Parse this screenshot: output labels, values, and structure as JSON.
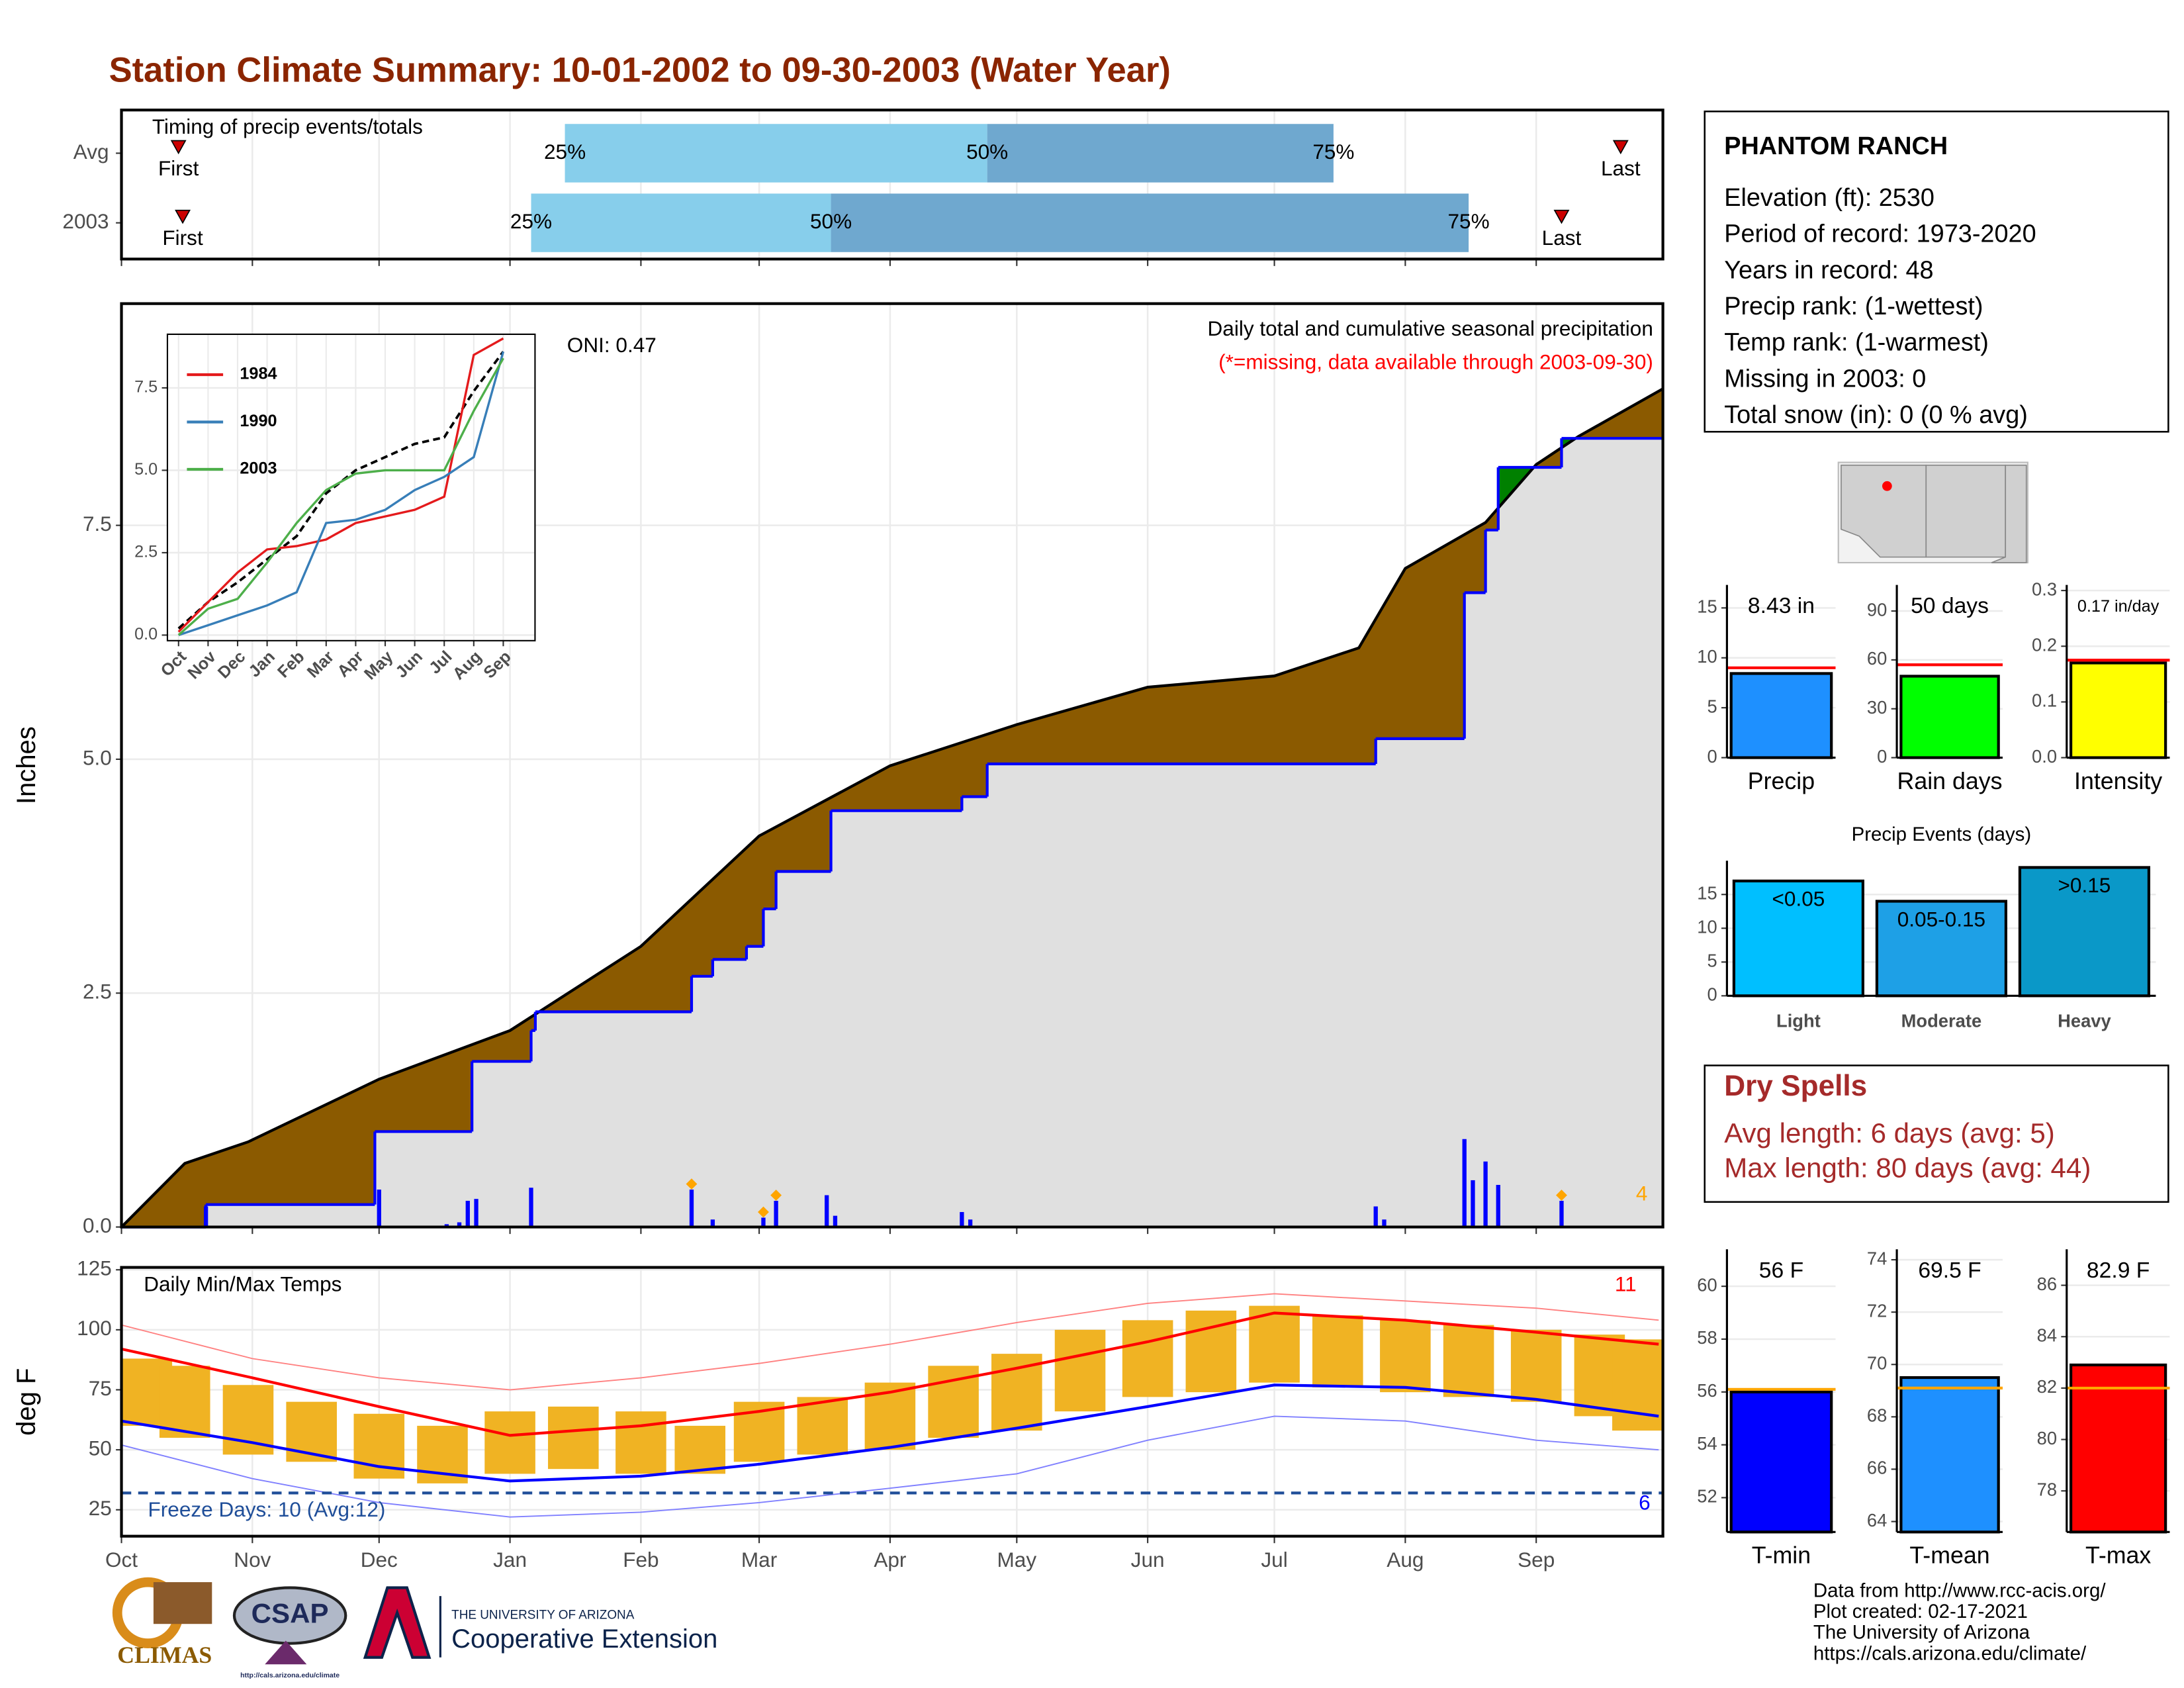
{
  "title": "Station Climate Summary: 10-01-2002 to 09-30-2003 (Water Year)",
  "station": {
    "name": "PHANTOM RANCH",
    "lines": [
      "Elevation (ft): 2530",
      "Period of record: 1973-2020",
      "Years in record: 48",
      "Precip rank:  (1-wettest)",
      "Temp rank:  (1-warmest)",
      "Missing in 2003: 0",
      "Total snow (in): 0 (0 % avg)"
    ]
  },
  "dry_spells": {
    "title": "Dry Spells",
    "lines": [
      "Avg length: 6 days (avg: 5)",
      "Max length: 80 days (avg: 44)"
    ]
  },
  "footer": {
    "credits": [
      "Data from http://www.rcc-acis.org/",
      "Plot created: 02-17-2021",
      "The University of Arizona",
      "https://cals.arizona.edu/climate/"
    ],
    "logos": {
      "climas": "CLIMAS",
      "csap": "CSAP",
      "csap_url": "http://cals.arizona.edu/climate",
      "ua": "THE UNIVERSITY OF ARIZONA",
      "extension": "Cooperative Extension"
    }
  },
  "chart_data": [
    {
      "type": "timing",
      "label": "Timing of precip events/totals",
      "xlim": [
        0,
        365
      ],
      "xticks": [
        0,
        31,
        61,
        92,
        123,
        151,
        182,
        212,
        243,
        273,
        304,
        335
      ],
      "marker_labels": {
        "first": "First",
        "p25": "25%",
        "p50": "50%",
        "p75": "75%",
        "last": "Last"
      },
      "colors": {
        "p25": "#87ceeb",
        "p50": "#6fa8cf",
        "marker": "#cc0000"
      },
      "rows": [
        {
          "name": "Avg",
          "first": 13.5,
          "p25": 105,
          "p50": 205,
          "p75": 287,
          "last": 355
        },
        {
          "name": "2003",
          "first": 14.5,
          "p25": 97,
          "p50": 168,
          "p75": 319,
          "last": 341
        }
      ]
    },
    {
      "type": "area",
      "ylabel": "Inches",
      "text": "Daily total and cumulative seasonal precipitation",
      "note": "(*=missing, data available through 2003-09-30)",
      "oni": "ONI: 0.47",
      "xlim": [
        0,
        365
      ],
      "xticks": [
        0,
        31,
        61,
        92,
        123,
        151,
        182,
        212,
        243,
        273,
        304,
        335
      ],
      "ylim": [
        0,
        9.87
      ],
      "yticks": [
        {
          "value": 0,
          "label": "0.0"
        },
        2.5,
        {
          "value": 5,
          "label": "5.0"
        },
        7.5
      ],
      "grid": true,
      "average": {
        "color": "#000000",
        "fill": "#8b5a00",
        "x": [
          0,
          15,
          30,
          61,
          92,
          123,
          151,
          182,
          212,
          243,
          273,
          293,
          304,
          323,
          335,
          345,
          365
        ],
        "values": [
          0,
          0.68,
          0.91,
          1.58,
          2.1,
          3.0,
          4.18,
          4.93,
          5.37,
          5.77,
          5.89,
          6.19,
          7.04,
          7.53,
          8.15,
          8.45,
          8.96
        ]
      },
      "current": {
        "color": "#0000ff",
        "fill": "#e0e0e0",
        "above_fill": "#008000",
        "x": [
          0,
          20,
          60,
          83,
          97,
          98,
          135,
          140,
          148,
          152,
          155,
          168,
          199,
          205,
          297,
          318,
          323,
          326,
          341
        ],
        "values": [
          0,
          0.24,
          1.02,
          1.77,
          2.1,
          2.3,
          2.68,
          2.86,
          3.0,
          3.4,
          3.8,
          4.45,
          4.6,
          4.95,
          5.22,
          6.78,
          7.45,
          8.12,
          8.43
        ]
      },
      "daily": {
        "color": "#0000ff",
        "x": [
          20,
          61,
          77,
          80,
          82,
          84,
          97,
          135,
          140,
          152,
          155,
          167,
          169,
          199,
          201,
          297,
          299,
          318,
          320,
          323,
          326,
          341
        ],
        "values": [
          0.22,
          0.4,
          0.03,
          0.05,
          0.28,
          0.3,
          0.42,
          0.4,
          0.08,
          0.1,
          0.28,
          0.34,
          0.12,
          0.16,
          0.08,
          0.22,
          0.08,
          0.94,
          0.5,
          0.7,
          0.45,
          0.28
        ]
      },
      "extreme_x": [
        135,
        152,
        155,
        341
      ],
      "extreme_color": "#ffa500",
      "extreme_count": 4
    },
    {
      "type": "line",
      "categories": [
        "Oct",
        "Nov",
        "Dec",
        "Jan",
        "Feb",
        "Mar",
        "Apr",
        "May",
        "Jun",
        "Jul",
        "Aug",
        "Sep"
      ],
      "ylim": [
        0,
        9
      ],
      "yticks": [
        {
          "value": 0,
          "label": "0.0"
        },
        2.5,
        {
          "value": 5,
          "label": "5.0"
        },
        7.5
      ],
      "series": [
        {
          "name": "1984",
          "color": "#e41a1c",
          "values": [
            0.1,
            1.0,
            1.9,
            2.6,
            2.7,
            2.9,
            3.4,
            3.6,
            3.8,
            4.2,
            8.5,
            9.0
          ]
        },
        {
          "name": "1990",
          "color": "#377eb8",
          "values": [
            0,
            0.3,
            0.6,
            0.9,
            1.3,
            3.4,
            3.5,
            3.8,
            4.4,
            4.8,
            5.4,
            8.6
          ]
        },
        {
          "name": "2003",
          "color": "#4daf4a",
          "values": [
            0,
            0.8,
            1.1,
            2.2,
            3.4,
            4.4,
            4.9,
            5.0,
            5.0,
            5.0,
            6.8,
            8.4
          ]
        }
      ],
      "average": {
        "color": "#000000",
        "values": [
          0.2,
          1.0,
          1.6,
          2.3,
          3.0,
          4.3,
          5.0,
          5.4,
          5.8,
          6.0,
          7.4,
          8.6
        ]
      }
    },
    {
      "type": "range_bar",
      "title": "Daily Min/Max Temps",
      "ylabel": "deg F",
      "xlim": [
        0,
        365
      ],
      "xticks": [
        0,
        31,
        61,
        92,
        123,
        151,
        182,
        212,
        243,
        273,
        304,
        335
      ],
      "month_labels": [
        "Oct",
        "Nov",
        "Dec",
        "Jan",
        "Feb",
        "Mar",
        "Apr",
        "May",
        "Jun",
        "Jul",
        "Aug",
        "Sep"
      ],
      "ylim": [
        14,
        126
      ],
      "yticks": [
        25,
        50,
        75,
        100,
        125
      ],
      "bars": {
        "color": "#f0b323",
        "x": [
          0,
          15,
          30,
          45,
          61,
          76,
          92,
          107,
          123,
          137,
          151,
          166,
          182,
          197,
          212,
          227,
          243,
          258,
          273,
          288,
          304,
          319,
          335,
          350,
          364
        ],
        "min": [
          60,
          55,
          48,
          45,
          38,
          36,
          40,
          42,
          40,
          40,
          45,
          48,
          50,
          55,
          58,
          66,
          72,
          74,
          78,
          76,
          74,
          72,
          70,
          64,
          58
        ],
        "max": [
          88,
          85,
          77,
          70,
          65,
          60,
          66,
          68,
          66,
          60,
          70,
          72,
          78,
          85,
          90,
          100,
          104,
          108,
          110,
          106,
          104,
          102,
          100,
          98,
          96
        ]
      },
      "normal_max": {
        "color": "#ff0000",
        "x": [
          0,
          31,
          61,
          92,
          123,
          151,
          182,
          212,
          243,
          273,
          304,
          335,
          364
        ],
        "values": [
          92,
          80,
          68,
          56,
          60,
          66,
          74,
          84,
          95,
          107,
          104,
          99,
          94
        ]
      },
      "normal_min": {
        "color": "#0000ff",
        "x": [
          0,
          31,
          61,
          92,
          123,
          151,
          182,
          212,
          243,
          273,
          304,
          335,
          364
        ],
        "values": [
          62,
          53,
          43,
          37,
          39,
          44,
          51,
          59,
          68,
          77,
          76,
          71,
          64
        ]
      },
      "record_max": {
        "color": "#ff8080",
        "x": [
          0,
          31,
          61,
          92,
          123,
          151,
          182,
          212,
          243,
          273,
          304,
          335,
          364
        ],
        "values": [
          102,
          88,
          80,
          75,
          80,
          86,
          94,
          103,
          111,
          115,
          112,
          109,
          104
        ]
      },
      "record_min": {
        "color": "#8080ff",
        "x": [
          0,
          31,
          61,
          92,
          123,
          151,
          182,
          212,
          243,
          273,
          304,
          335,
          364
        ],
        "values": [
          52,
          38,
          28,
          22,
          24,
          28,
          34,
          40,
          54,
          64,
          62,
          54,
          50
        ]
      },
      "freeze": {
        "value": 32,
        "label": "Freeze Days: 10 (Avg:12)",
        "color": "#1f4e99"
      },
      "record_high_count": 11,
      "record_low_count": 6
    },
    {
      "type": "bar",
      "categories": [
        "Precip"
      ],
      "values": [
        8.43
      ],
      "value_labels": [
        "8.43 in"
      ],
      "average": 9.0,
      "average_color": "#ff0000",
      "color": "#1e90ff",
      "ylim": [
        0,
        17.3
      ],
      "yticks": [
        0,
        5,
        10,
        15
      ]
    },
    {
      "type": "bar",
      "categories": [
        "Rain days"
      ],
      "values": [
        50
      ],
      "value_labels": [
        "50 days"
      ],
      "average": 57,
      "average_color": "#ff0000",
      "color": "#00ff00",
      "ylim": [
        0,
        106
      ],
      "yticks": [
        0,
        30,
        60,
        90
      ]
    },
    {
      "type": "bar",
      "categories": [
        "Intensity"
      ],
      "values": [
        0.17
      ],
      "value_labels": [
        "0.17 in/day"
      ],
      "average": 0.175,
      "average_color": "#ff0000",
      "color": "#ffff00",
      "ylim": [
        0,
        0.31
      ],
      "yticks": [
        {
          "value": 0,
          "label": "0.0"
        },
        0.1,
        0.2,
        0.3
      ]
    },
    {
      "type": "bar",
      "title": "Precip Events (days)",
      "categories": [
        "Light",
        "Moderate",
        "Heavy"
      ],
      "values": [
        17,
        14,
        19
      ],
      "bin_labels": [
        "<0.05",
        "0.05-0.15",
        ">0.15"
      ],
      "colors": [
        "#00bfff",
        "#1ea0e6",
        "#0a98c8"
      ],
      "ylim": [
        0,
        20
      ],
      "yticks": [
        0,
        5,
        10,
        15
      ]
    },
    {
      "type": "bar",
      "categories": [
        "T-min"
      ],
      "values": [
        56.0
      ],
      "value_labels": [
        "56 F"
      ],
      "average": 56.1,
      "average_color": "#ffa500",
      "color": "#0000ff",
      "ylim": [
        50.7,
        61.4
      ],
      "yticks": [
        52,
        54,
        56,
        58,
        60
      ]
    },
    {
      "type": "bar",
      "categories": [
        "T-mean"
      ],
      "values": [
        69.5
      ],
      "value_labels": [
        "69.5 F"
      ],
      "average": 69.1,
      "average_color": "#ffa500",
      "color": "#1e90ff",
      "ylim": [
        63.6,
        74.4
      ],
      "yticks": [
        64,
        66,
        68,
        70,
        72,
        74
      ]
    },
    {
      "type": "bar",
      "categories": [
        "T-max"
      ],
      "values": [
        82.9
      ],
      "value_labels": [
        "82.9 F"
      ],
      "average": 82.0,
      "average_color": "#ffa500",
      "color": "#ff0000",
      "ylim": [
        76.4,
        87.4
      ],
      "yticks": [
        78,
        80,
        82,
        84,
        86
      ]
    }
  ]
}
